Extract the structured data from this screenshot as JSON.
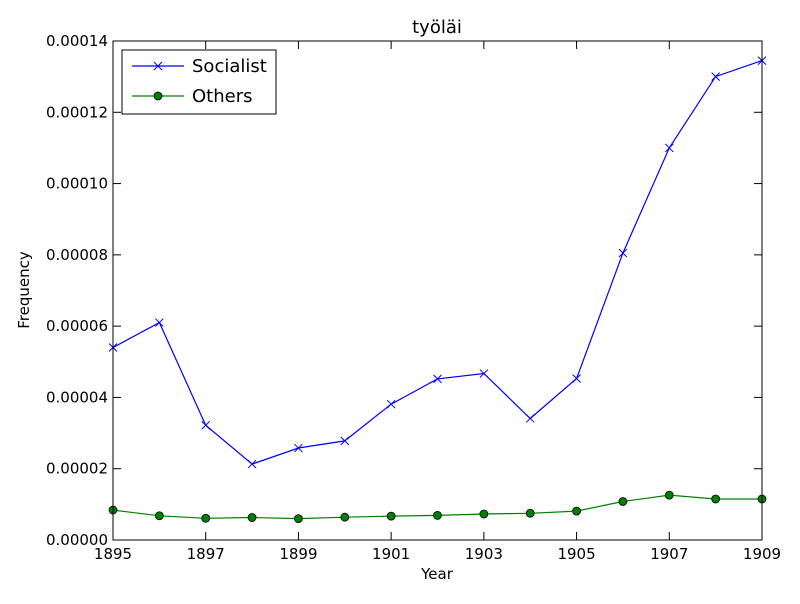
{
  "chart_data": {
    "type": "line",
    "title": "työläi",
    "xlabel": "Year",
    "ylabel": "Frequency",
    "xlim": [
      1895,
      1909
    ],
    "ylim": [
      0,
      0.00014
    ],
    "x": [
      1895,
      1896,
      1897,
      1898,
      1899,
      1900,
      1901,
      1902,
      1903,
      1904,
      1905,
      1906,
      1907,
      1908,
      1909
    ],
    "x_ticks": [
      "1895",
      "1897",
      "1899",
      "1901",
      "1903",
      "1905",
      "1907",
      "1909"
    ],
    "y_ticks": [
      "0.00000",
      "0.00002",
      "0.00004",
      "0.00006",
      "0.00008",
      "0.00010",
      "0.00012",
      "0.00014"
    ],
    "legend_position": "top-left",
    "grid": false,
    "series": [
      {
        "name": "Socialist",
        "color": "#0000ff",
        "marker": "x",
        "values": [
          5.4e-05,
          6.1e-05,
          3.22e-05,
          2.13e-05,
          2.58e-05,
          2.78e-05,
          3.81e-05,
          4.52e-05,
          4.67e-05,
          3.41e-05,
          4.53e-05,
          8.05e-05,
          0.00011,
          0.00013,
          0.0001345
        ]
      },
      {
        "name": "Others",
        "color": "#008000",
        "marker": "o",
        "values": [
          8.4e-06,
          6.8e-06,
          6.1e-06,
          6.3e-06,
          6e-06,
          6.4e-06,
          6.7e-06,
          6.9e-06,
          7.3e-06,
          7.5e-06,
          8.1e-06,
          1.08e-05,
          1.26e-05,
          1.15e-05,
          1.15e-05
        ]
      }
    ]
  }
}
